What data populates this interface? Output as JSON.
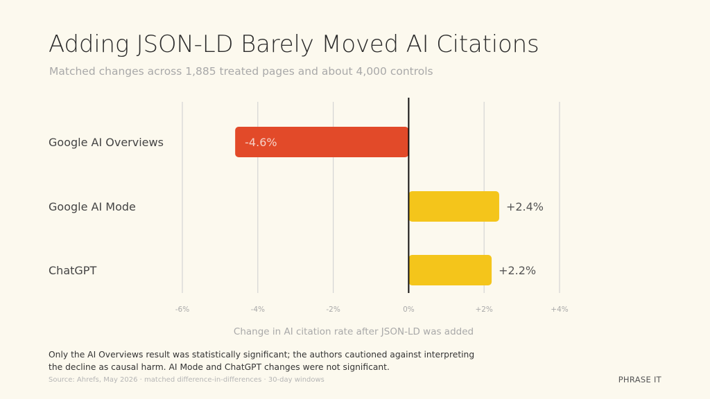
{
  "title": "Adding JSON-LD Barely Moved AI Citations",
  "subtitle": "Matched changes across 1,885 treated pages and about 4,000 controls",
  "note": "Only the AI Overviews result was statistically significant; the authors cautioned against interpreting the decline as causal harm. AI Mode and ChatGPT changes were not significant.",
  "source": "Source: Ahrefs, May 2026 · matched difference-in-differences · 30-day windows",
  "brand": "PHRASE IT",
  "colors": {
    "negative": "#e24a29",
    "positive": "#f4c51b",
    "gridline": "#d4d4d4",
    "zero_line": "#111111"
  },
  "chart_data": {
    "type": "bar",
    "orientation": "horizontal",
    "categories": [
      "Google AI Overviews",
      "Google AI Mode",
      "ChatGPT"
    ],
    "values": [
      -4.6,
      2.4,
      2.2
    ],
    "value_labels": [
      "-4.6%",
      "+2.4%",
      "+2.2%"
    ],
    "xlabel": "Change in AI citation rate after JSON-LD was added",
    "xlim": [
      -6,
      4
    ],
    "xticks": [
      -6,
      -4,
      -2,
      0,
      2,
      4
    ],
    "xtick_labels": [
      "-6%",
      "-4%",
      "-2%",
      "0%",
      "+2%",
      "+4%"
    ],
    "grid": true
  }
}
